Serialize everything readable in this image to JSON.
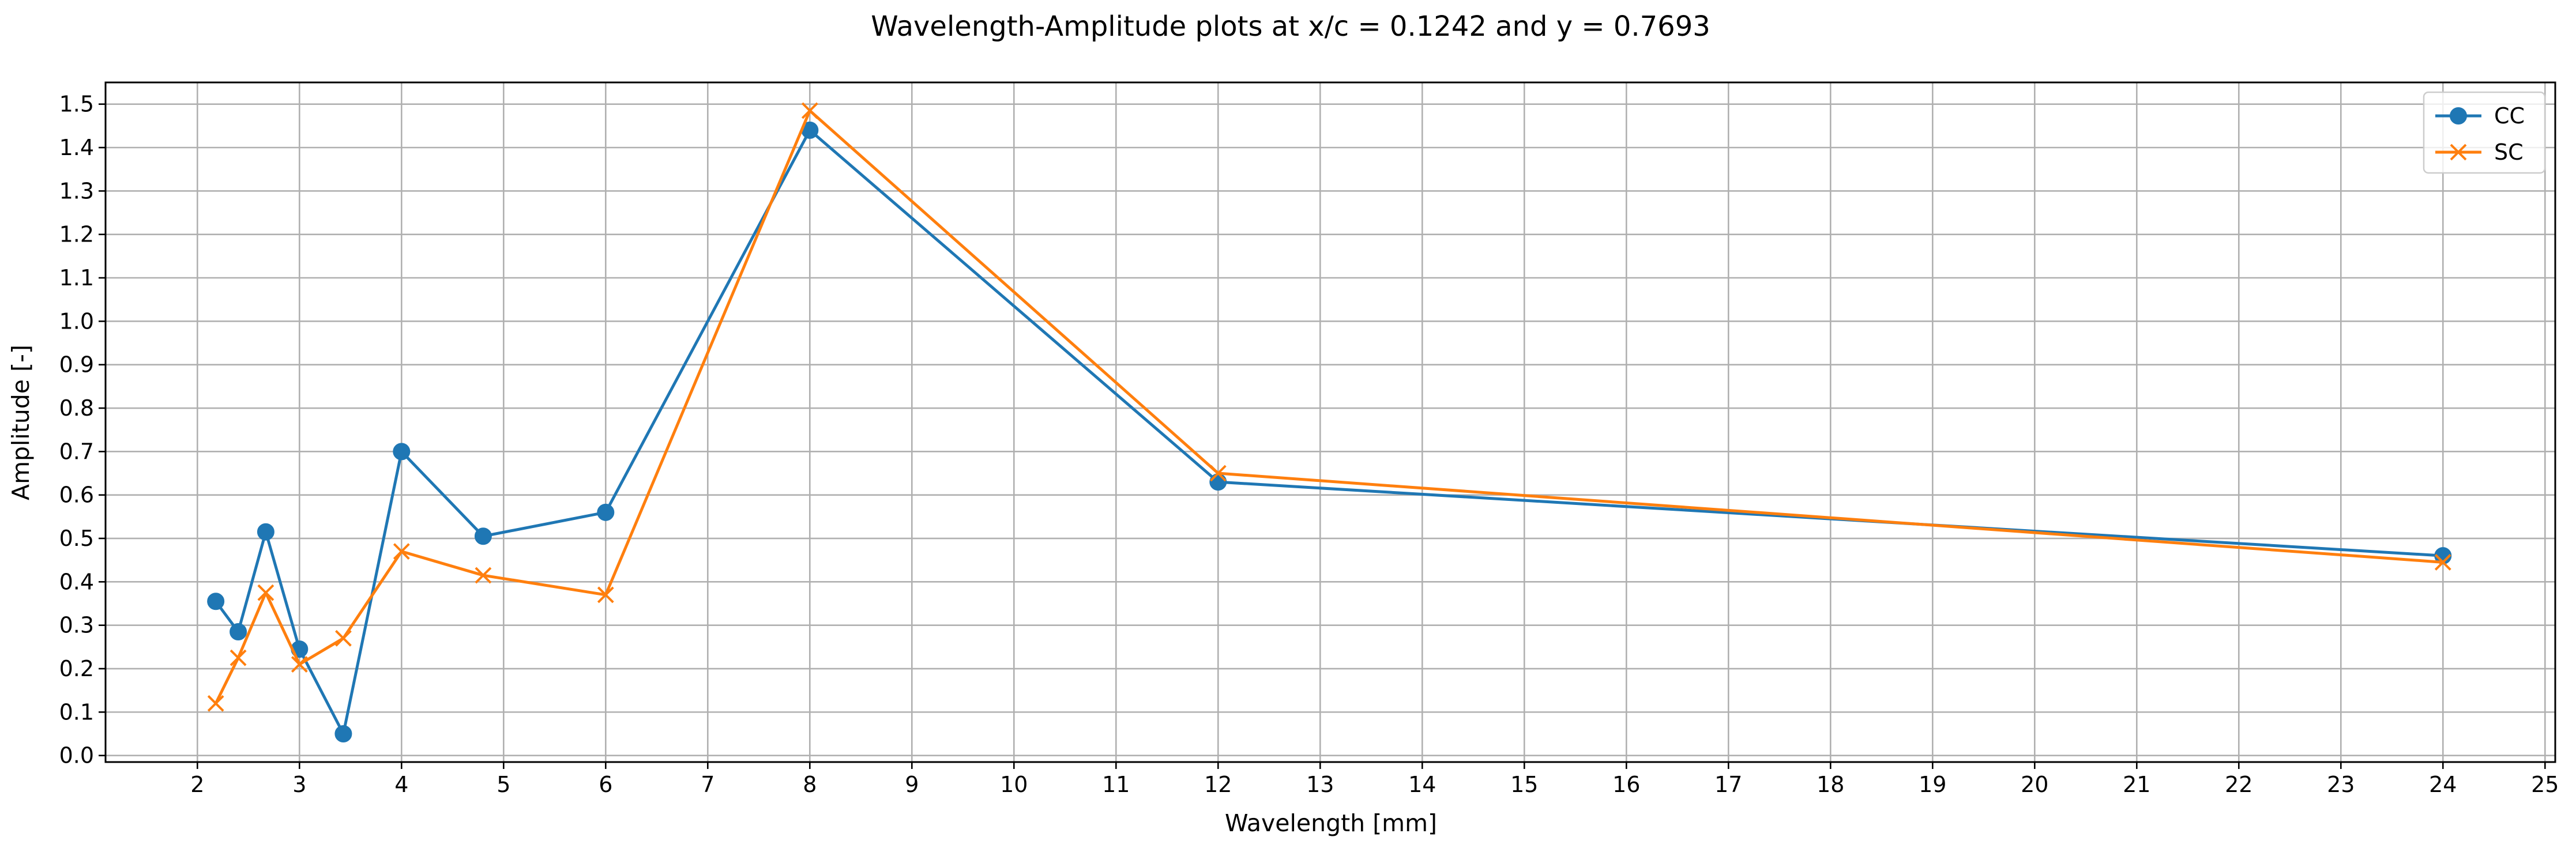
{
  "chart_data": {
    "type": "line",
    "title": "Wavelength-Amplitude plots at x/c = 0.1242 and y = 0.7693",
    "xlabel": "Wavelength [mm]",
    "ylabel": "Amplitude [-]",
    "xlim": [
      1.1,
      25.1
    ],
    "ylim": [
      -0.015,
      1.55
    ],
    "xticks": [
      2,
      3,
      4,
      5,
      6,
      7,
      8,
      9,
      10,
      11,
      12,
      13,
      14,
      15,
      16,
      17,
      18,
      19,
      20,
      21,
      22,
      23,
      24,
      25
    ],
    "xtick_labels": [
      "2",
      "3",
      "4",
      "5",
      "6",
      "7",
      "8",
      "9",
      "10",
      "11",
      "12",
      "13",
      "14",
      "15",
      "16",
      "17",
      "18",
      "19",
      "20",
      "21",
      "22",
      "23",
      "24",
      "25"
    ],
    "yticks": [
      0.0,
      0.1,
      0.2,
      0.3,
      0.4,
      0.5,
      0.6,
      0.7,
      0.8,
      0.9,
      1.0,
      1.1,
      1.2,
      1.3,
      1.4,
      1.5
    ],
    "ytick_labels": [
      "0.0",
      "0.1",
      "0.2",
      "0.3",
      "0.4",
      "0.5",
      "0.6",
      "0.7",
      "0.8",
      "0.9",
      "1.0",
      "1.1",
      "1.2",
      "1.3",
      "1.4",
      "1.5"
    ],
    "grid": true,
    "legend_position": "top-right",
    "series": [
      {
        "name": "CC",
        "marker": "circle",
        "color": "#1f77b4",
        "x": [
          2.18,
          2.4,
          2.67,
          3.0,
          3.43,
          4.0,
          4.8,
          6.0,
          8.0,
          12.0,
          24.0
        ],
        "y": [
          0.355,
          0.285,
          0.515,
          0.245,
          0.05,
          0.7,
          0.505,
          0.56,
          1.44,
          0.63,
          0.46
        ]
      },
      {
        "name": "SC",
        "marker": "x",
        "color": "#ff7f0e",
        "x": [
          2.18,
          2.4,
          2.67,
          3.0,
          3.43,
          4.0,
          4.8,
          6.0,
          8.0,
          12.0,
          24.0
        ],
        "y": [
          0.12,
          0.225,
          0.375,
          0.21,
          0.27,
          0.47,
          0.415,
          0.37,
          1.485,
          0.65,
          0.445
        ]
      }
    ]
  }
}
